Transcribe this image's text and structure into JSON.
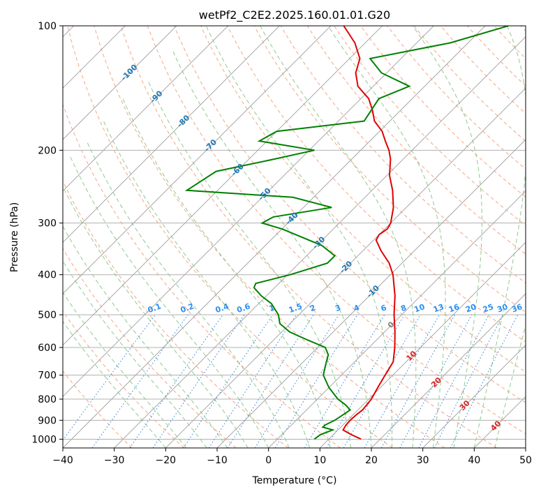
{
  "chart_data": {
    "type": "line",
    "subtype": "skew-t log-p diagram",
    "title": "wetPf2_C2E2.2025.160.01.01.G20",
    "xlabel": "Temperature (°C)",
    "ylabel": "Pressure (hPa)",
    "xlim": [
      -40,
      50
    ],
    "ylim": [
      1050,
      100
    ],
    "y_scale": "log",
    "x_ticks": [
      -40,
      -30,
      -20,
      -10,
      0,
      10,
      20,
      30,
      40,
      50
    ],
    "y_ticks": [
      100,
      200,
      300,
      400,
      500,
      600,
      700,
      800,
      900,
      1000
    ],
    "grid": true,
    "background_lines": {
      "skewed_isotherms": "solid gray",
      "dry_adiabats": "dashed salmon",
      "moist_adiabats": "dashed green",
      "mixing_ratio_lines": "dotted blue"
    },
    "isotherm_labels": [
      "-100",
      "-90",
      "-80",
      "-70",
      "-60",
      "-50",
      "-40",
      "-30",
      "-20",
      "-10",
      "0",
      "10",
      "20",
      "30",
      "40"
    ],
    "mixing_ratio_labels": [
      "0.1",
      "0.2",
      "0.4",
      "0.6",
      "1",
      "1.5",
      "2",
      "3",
      "4",
      "6",
      "8",
      "10",
      "13",
      "16",
      "20",
      "25",
      "30",
      "36"
    ],
    "series": [
      {
        "role": "temperature",
        "color": "#e00000",
        "points": [
          [
            1000,
            16.3
          ],
          [
            975,
            13.5
          ],
          [
            950,
            11.0
          ],
          [
            925,
            10.6
          ],
          [
            900,
            10.5
          ],
          [
            875,
            10.6
          ],
          [
            850,
            10.9
          ],
          [
            800,
            10.5
          ],
          [
            750,
            9.5
          ],
          [
            700,
            8.5
          ],
          [
            650,
            7.5
          ],
          [
            600,
            5.0
          ],
          [
            550,
            2.0
          ],
          [
            500,
            -1.5
          ],
          [
            450,
            -5.0
          ],
          [
            400,
            -9.5
          ],
          [
            375,
            -12.5
          ],
          [
            350,
            -16.5
          ],
          [
            330,
            -19.5
          ],
          [
            320,
            -20.0
          ],
          [
            310,
            -19.5
          ],
          [
            300,
            -20.0
          ],
          [
            275,
            -22.5
          ],
          [
            250,
            -26.0
          ],
          [
            230,
            -29.5
          ],
          [
            210,
            -32.5
          ],
          [
            200,
            -34.5
          ],
          [
            190,
            -37.0
          ],
          [
            180,
            -39.5
          ],
          [
            170,
            -43.0
          ],
          [
            160,
            -45.5
          ],
          [
            150,
            -48.5
          ],
          [
            140,
            -53.0
          ],
          [
            130,
            -56.0
          ],
          [
            120,
            -58.0
          ],
          [
            110,
            -62.0
          ],
          [
            100,
            -67.5
          ]
        ]
      },
      {
        "role": "dewpoint",
        "color": "#008000",
        "points": [
          [
            1000,
            7.2
          ],
          [
            975,
            7.5
          ],
          [
            950,
            9.0
          ],
          [
            935,
            6.5
          ],
          [
            925,
            6.5
          ],
          [
            900,
            7.5
          ],
          [
            875,
            8.0
          ],
          [
            850,
            8.5
          ],
          [
            825,
            6.5
          ],
          [
            800,
            4.0
          ],
          [
            750,
            0.0
          ],
          [
            700,
            -3.5
          ],
          [
            650,
            -5.5
          ],
          [
            625,
            -6.5
          ],
          [
            600,
            -8.5
          ],
          [
            575,
            -13.5
          ],
          [
            550,
            -18.5
          ],
          [
            525,
            -22.0
          ],
          [
            500,
            -24.0
          ],
          [
            470,
            -27.5
          ],
          [
            450,
            -31.0
          ],
          [
            430,
            -34.0
          ],
          [
            420,
            -34.5
          ],
          [
            400,
            -29.5
          ],
          [
            375,
            -24.5
          ],
          [
            360,
            -24.5
          ],
          [
            340,
            -29.0
          ],
          [
            310,
            -40.0
          ],
          [
            300,
            -45.0
          ],
          [
            290,
            -44.0
          ],
          [
            275,
            -34.5
          ],
          [
            260,
            -44.0
          ],
          [
            250,
            -66.0
          ],
          [
            225,
            -64.0
          ],
          [
            210,
            -55.0
          ],
          [
            200,
            -49.0
          ],
          [
            190,
            -61.5
          ],
          [
            180,
            -60.0
          ],
          [
            170,
            -45.0
          ],
          [
            150,
            -46.5
          ],
          [
            140,
            -43.0
          ],
          [
            130,
            -51.0
          ],
          [
            120,
            -56.0
          ],
          [
            110,
            -43.5
          ],
          [
            100,
            -35.5
          ]
        ]
      }
    ]
  }
}
